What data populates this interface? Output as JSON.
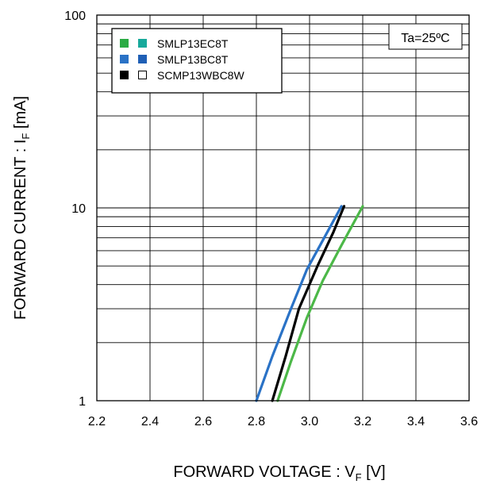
{
  "chart_data": {
    "type": "line",
    "title": "",
    "xlabel": "FORWARD VOLTAGE : V",
    "xlabel_sub": "F",
    "xlabel_unit": " [V]",
    "ylabel": "FORWARD CURRENT : I",
    "ylabel_sub": "F",
    "ylabel_unit": " [mA]",
    "xlim": [
      2.2,
      3.6
    ],
    "ylim": [
      1,
      100
    ],
    "y_scale": "log",
    "grid": true,
    "x_ticks": [
      "2.2",
      "2.4",
      "2.6",
      "2.8",
      "3.0",
      "3.2",
      "3.4",
      "3.6"
    ],
    "y_ticks": [
      {
        "value": 1,
        "label": "1"
      },
      {
        "value": 10,
        "label": "10"
      },
      {
        "value": 100,
        "label": "100"
      }
    ],
    "annotation": "Ta=25ºC",
    "legend_position": "top-left",
    "legend": [
      {
        "label": "SMLP13EC8T",
        "swatches": [
          "#2bab44",
          "#17a99b"
        ]
      },
      {
        "label": "SMLP13BC8T",
        "swatches": [
          "#2a72c6",
          "#1f5fb5"
        ]
      },
      {
        "label": "SCMP13WBC8W",
        "swatches": [
          "#000000",
          "outline"
        ]
      }
    ],
    "series": [
      {
        "color": "#4cb848",
        "x": [
          2.88,
          2.93,
          2.99,
          3.05,
          3.12,
          3.2
        ],
        "y": [
          1,
          1.6,
          2.7,
          4.2,
          6.4,
          10.2
        ]
      },
      {
        "color": "#2a72c6",
        "x": [
          2.8,
          2.86,
          2.93,
          2.99,
          3.06,
          3.12
        ],
        "y": [
          1,
          1.7,
          3.0,
          4.8,
          7.2,
          10.2
        ]
      },
      {
        "color": "#000000",
        "x": [
          2.86,
          2.91,
          2.96,
          3.03,
          3.09,
          3.13
        ],
        "y": [
          1,
          1.7,
          3.0,
          5.0,
          7.5,
          10.2
        ]
      }
    ]
  }
}
